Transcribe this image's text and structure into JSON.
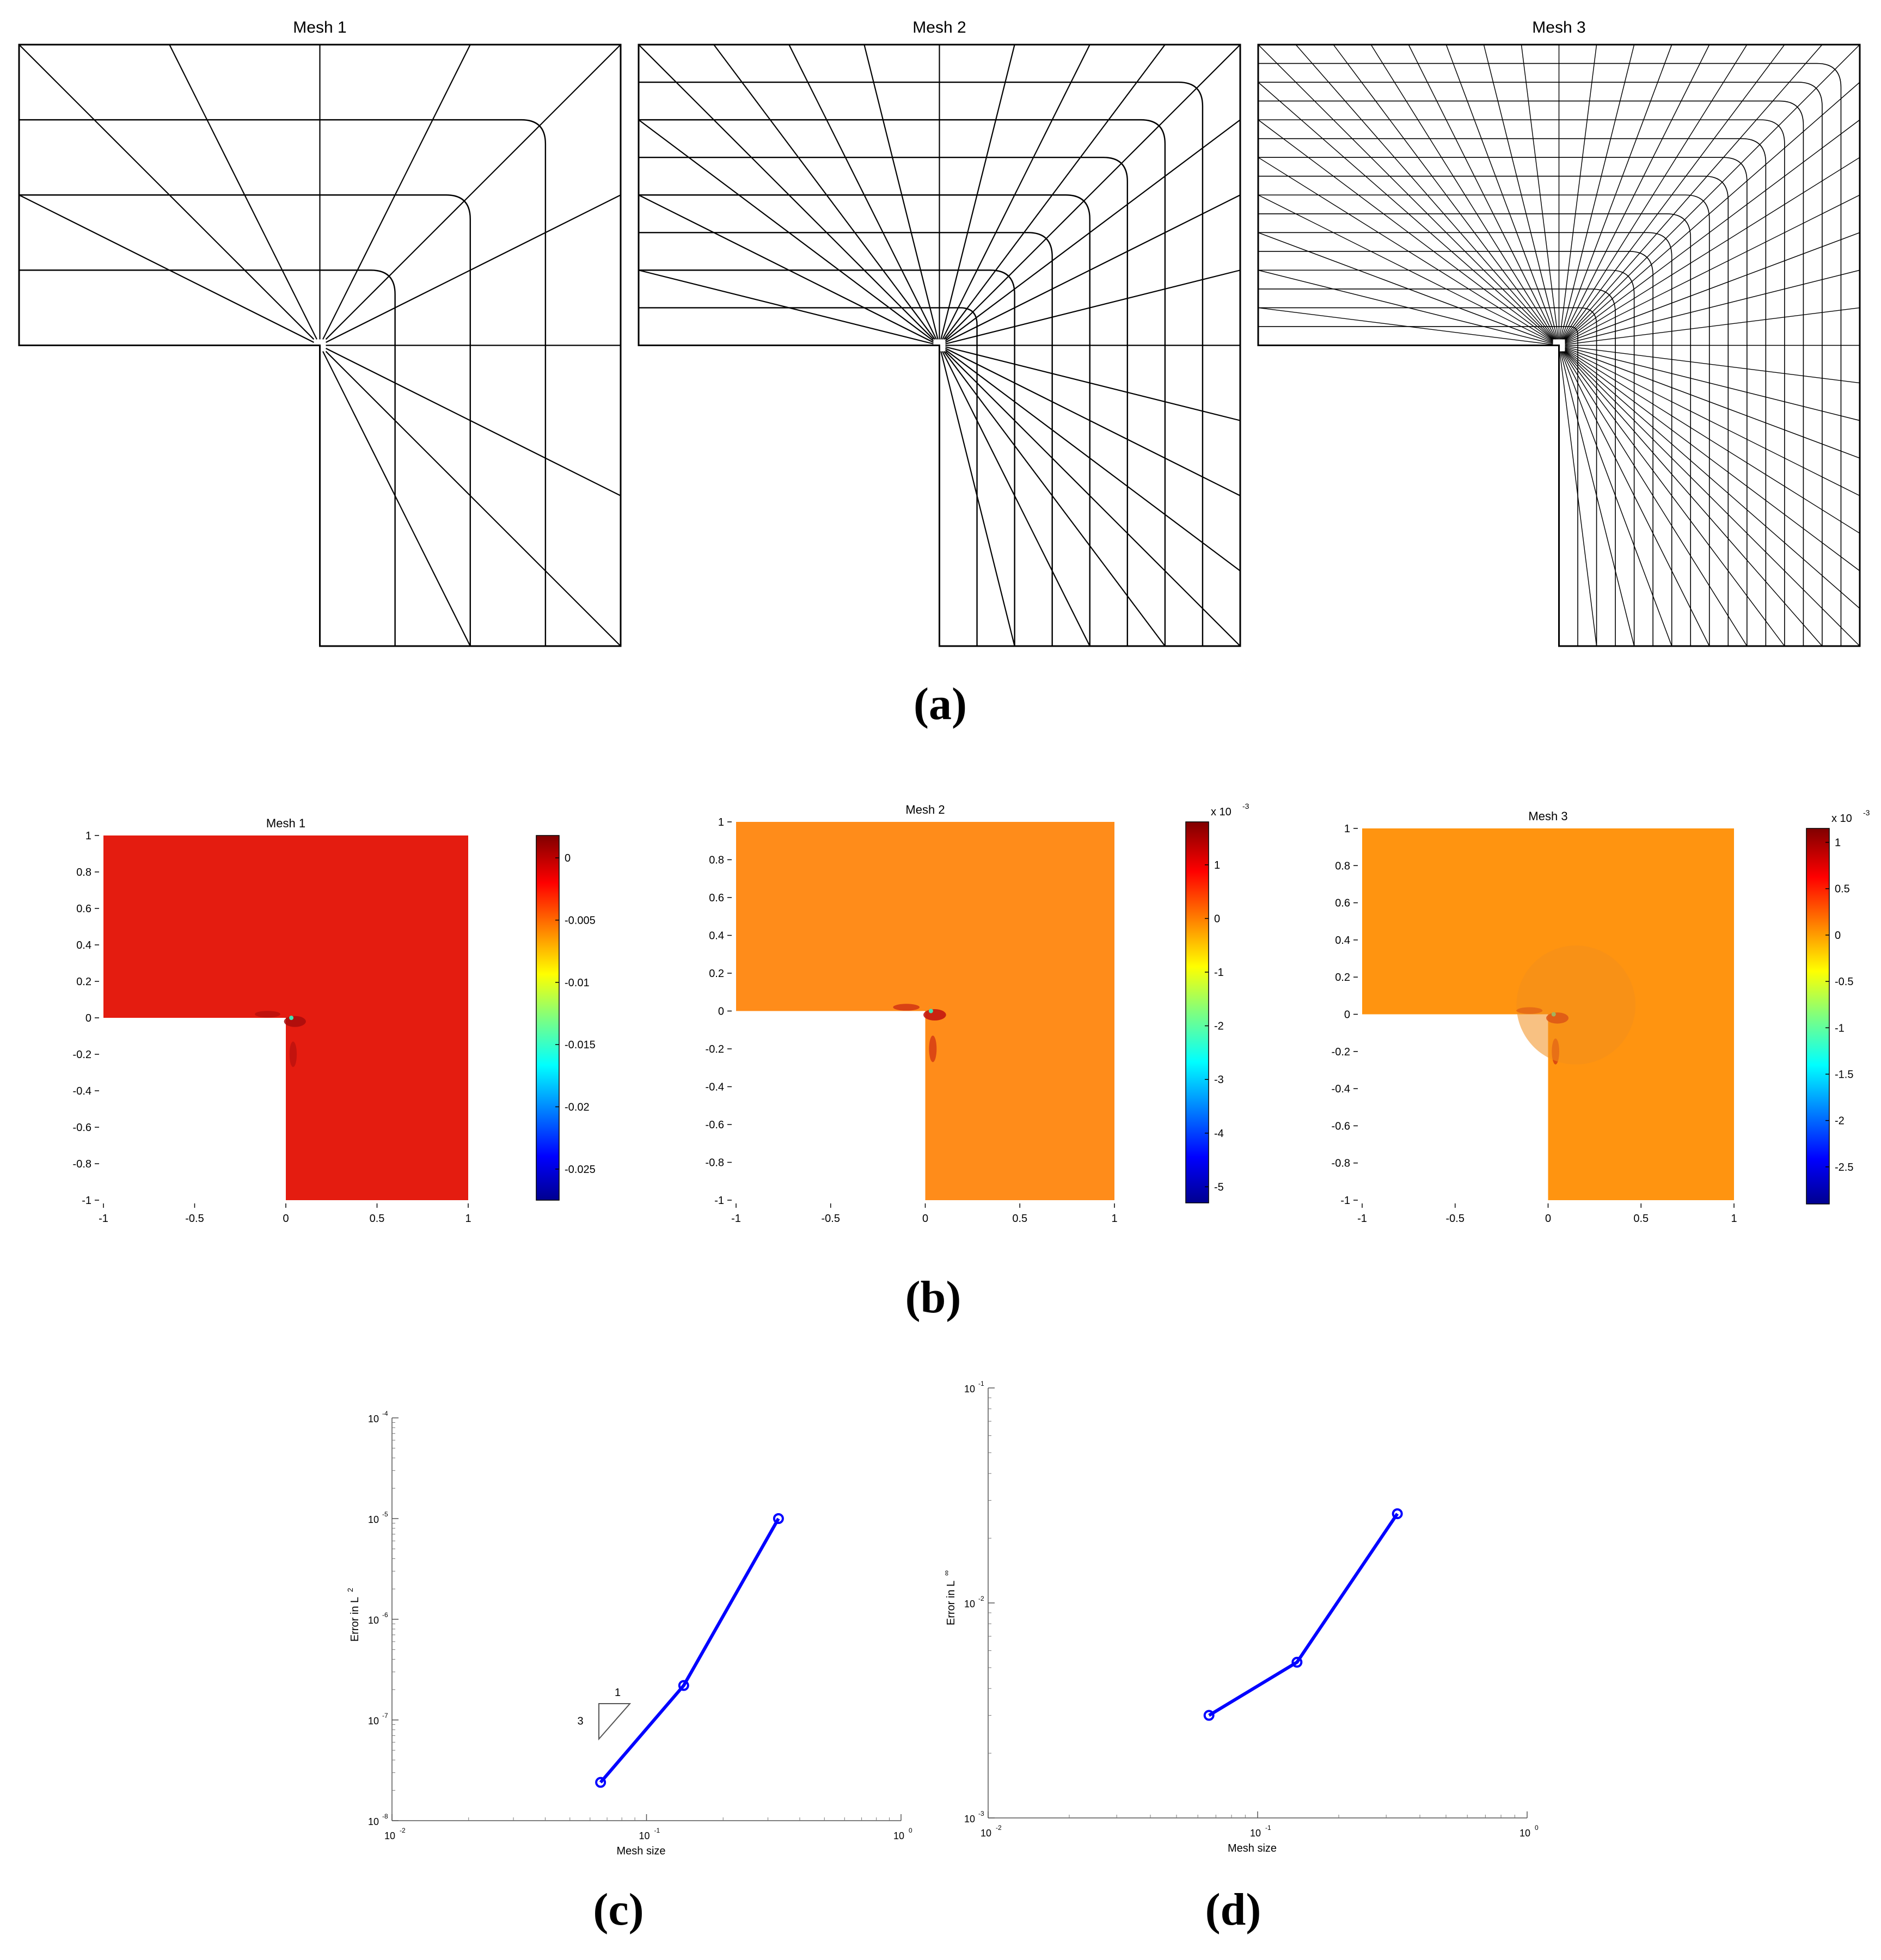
{
  "panel_labels": {
    "a": "(a)",
    "b": "(b)",
    "c": "(c)",
    "d": "(d)"
  },
  "panel_a": {
    "titles": [
      "Mesh 1",
      "Mesh 2",
      "Mesh 3"
    ],
    "meshes": [
      {
        "name": "Mesh 1",
        "nx": 4,
        "ny": 4
      },
      {
        "name": "Mesh 2",
        "nx": 8,
        "ny": 8
      },
      {
        "name": "Mesh 3",
        "nx": 16,
        "ny": 16
      }
    ]
  },
  "panel_b": {
    "plots": [
      {
        "title": "Mesh 1",
        "fill": "#e41c10",
        "hot": "#a80c0c",
        "xticks": [
          "-1",
          "-0.5",
          "0",
          "0.5",
          "1"
        ],
        "yticks": [
          "1",
          "0.8",
          "0.6",
          "0.4",
          "0.2",
          "0",
          "-0.2",
          "-0.4",
          "-0.6",
          "-0.8",
          "-1"
        ],
        "colorbar_ticks": [
          "0",
          "-0.005",
          "-0.01",
          "-0.015",
          "-0.02",
          "-0.025"
        ],
        "colorbar_tick_values": [
          0,
          -0.005,
          -0.01,
          -0.015,
          -0.02,
          -0.025
        ],
        "colorbar_range": [
          -0.0275,
          0.0018
        ],
        "colorbar_exponent": ""
      },
      {
        "title": "Mesh 2",
        "fill": "#ff8c1a",
        "hot": "#c01010",
        "xticks": [
          "-1",
          "-0.5",
          "0",
          "0.5",
          "1"
        ],
        "yticks": [
          "1",
          "0.8",
          "0.6",
          "0.4",
          "0.2",
          "0",
          "-0.2",
          "-0.4",
          "-0.6",
          "-0.8",
          "-1"
        ],
        "colorbar_ticks": [
          "1",
          "0",
          "-1",
          "-2",
          "-3",
          "-4",
          "-5"
        ],
        "colorbar_tick_values": [
          1,
          0,
          -1,
          -2,
          -3,
          -4,
          -5
        ],
        "colorbar_range": [
          -5.3,
          1.8
        ],
        "colorbar_exponent": "x 10",
        "colorbar_exponent_power": "-3"
      },
      {
        "title": "Mesh 3",
        "fill": "#ff9410",
        "hot": "#c01010",
        "xticks": [
          "-1",
          "-0.5",
          "0",
          "0.5",
          "1"
        ],
        "yticks": [
          "1",
          "0.8",
          "0.6",
          "0.4",
          "0.2",
          "0",
          "-0.2",
          "-0.4",
          "-0.6",
          "-0.8",
          "-1"
        ],
        "colorbar_ticks": [
          "1",
          "0.5",
          "0",
          "-0.5",
          "-1",
          "-1.5",
          "-2",
          "-2.5"
        ],
        "colorbar_tick_values": [
          1,
          0.5,
          0,
          -0.5,
          -1,
          -1.5,
          -2,
          -2.5
        ],
        "colorbar_range": [
          -2.9,
          1.15
        ],
        "colorbar_exponent": "x 10",
        "colorbar_exponent_power": "-3"
      }
    ]
  },
  "chart_data": [
    {
      "type": "line",
      "scale": "log-log",
      "xlabel": "Mesh size",
      "ylabel": "Error in L",
      "ylabel_sup": "2",
      "xlim": [
        0.01,
        1
      ],
      "ylim": [
        1e-08,
        0.0001
      ],
      "x_tick_exponents": [
        "-2",
        "-1",
        "0"
      ],
      "y_tick_exponents": [
        "-8",
        "-7",
        "-6",
        "-5",
        "-4"
      ],
      "series": [
        {
          "color": "#0000ff",
          "x": [
            0.066,
            0.14,
            0.33
          ],
          "y": [
            2.4e-08,
            2.2e-07,
            1e-05
          ]
        }
      ],
      "slope_triangle": {
        "run_label": "1",
        "rise_label": "3"
      }
    },
    {
      "type": "line",
      "scale": "log-log",
      "xlabel": "Mesh size",
      "ylabel": "Error in L",
      "ylabel_sup": "∞",
      "xlim": [
        0.01,
        1
      ],
      "ylim": [
        0.001,
        0.1
      ],
      "x_tick_exponents": [
        "-2",
        "-1",
        "0"
      ],
      "y_tick_exponents": [
        "-3",
        "-2",
        "-1"
      ],
      "series": [
        {
          "color": "#0000ff",
          "x": [
            0.066,
            0.14,
            0.33
          ],
          "y": [
            0.003,
            0.0053,
            0.026
          ]
        }
      ]
    }
  ]
}
